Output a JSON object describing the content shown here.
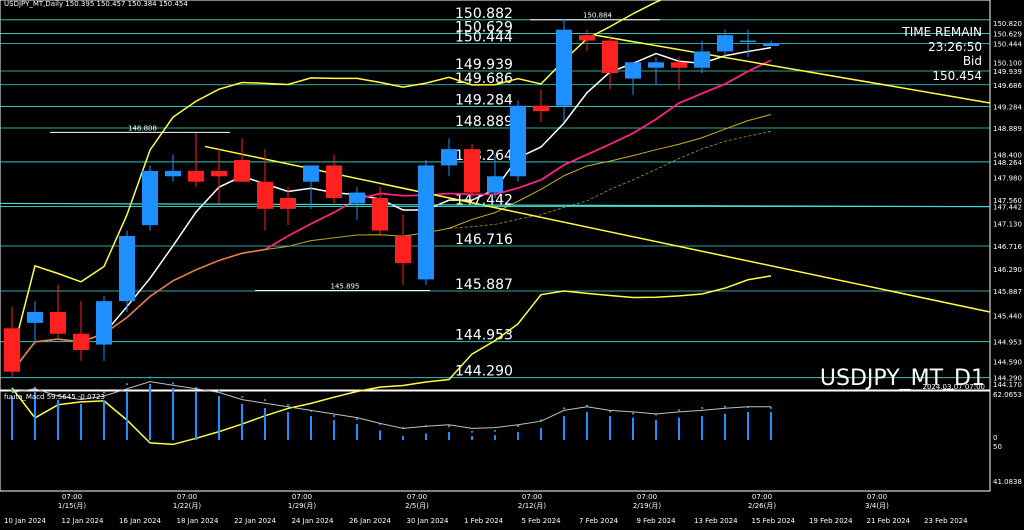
{
  "header": {
    "title": "USDJPY_MT,Daily  150.395 150.457 150.384 150.454",
    "watermark": "USDJPY_MT_D1",
    "watermark_date": "2024.03.07 07:00"
  },
  "info_panel": {
    "time_label": "TIME REMAIN",
    "time_value": "23:26:50",
    "bid_label": "Bid",
    "bid_value": "150.454"
  },
  "macd": {
    "label": "fuuta_Macd 59.5645  -0.0723",
    "axis": [
      "62.0653",
      "0",
      "50",
      "41.0838"
    ]
  },
  "chart_data": {
    "type": "candlestick",
    "price_axis": [
      "150.820",
      "150.629",
      "150.444",
      "150.100",
      "149.939",
      "149.686",
      "149.284",
      "148.889",
      "148.400",
      "148.264",
      "147.980",
      "147.560",
      "147.442",
      "147.130",
      "146.716",
      "146.290",
      "145.887",
      "145.440",
      "144.953",
      "144.590",
      "144.290",
      "144.170"
    ],
    "level_labels": [
      "150.882",
      "150.629",
      "150.444",
      "149.939",
      "149.686",
      "149.284",
      "148.889",
      "148.264",
      "147.442",
      "146.716",
      "145.887",
      "144.953",
      "144.290"
    ],
    "annotations": [
      "150.884",
      "148.808",
      "145.895"
    ],
    "date_axis_bottom": [
      "10 Jan 2024",
      "12 Jan 2024",
      "16 Jan 2024",
      "18 Jan 2024",
      "22 Jan 2024",
      "24 Jan 2024",
      "26 Jan 2024",
      "30 Jan 2024",
      "1 Feb 2024",
      "5 Feb 2024",
      "7 Feb 2024",
      "9 Feb 2024",
      "13 Feb 2024",
      "15 Feb 2024",
      "19 Feb 2024",
      "21 Feb 2024",
      "23 Feb 2024"
    ],
    "week_labels": [
      {
        "time": "07:00",
        "date": "1/15(月)"
      },
      {
        "time": "07:00",
        "date": "1/22(月)"
      },
      {
        "time": "07:00",
        "date": "1/29(月)"
      },
      {
        "time": "07:00",
        "date": "2/5(月)"
      },
      {
        "time": "07:00",
        "date": "2/12(月)"
      },
      {
        "time": "07:00",
        "date": "2/19(月)"
      },
      {
        "time": "07:00",
        "date": "2/26(月)"
      },
      {
        "time": "07:00",
        "date": "3/4(月)"
      }
    ],
    "ylim": [
      144.1,
      151.1
    ],
    "candles": [
      {
        "o": 145.2,
        "h": 145.6,
        "l": 144.3,
        "c": 144.4
      },
      {
        "o": 145.3,
        "h": 145.7,
        "l": 144.9,
        "c": 145.5
      },
      {
        "o": 145.5,
        "h": 146.0,
        "l": 145.0,
        "c": 145.1
      },
      {
        "o": 145.1,
        "h": 145.7,
        "l": 144.6,
        "c": 144.8
      },
      {
        "o": 144.9,
        "h": 145.8,
        "l": 144.6,
        "c": 145.7
      },
      {
        "o": 145.7,
        "h": 147.0,
        "l": 145.5,
        "c": 146.9
      },
      {
        "o": 147.1,
        "h": 148.2,
        "l": 147.0,
        "c": 148.1
      },
      {
        "o": 148.0,
        "h": 148.4,
        "l": 147.9,
        "c": 148.1
      },
      {
        "o": 148.1,
        "h": 148.8,
        "l": 147.8,
        "c": 147.9
      },
      {
        "o": 148.1,
        "h": 148.5,
        "l": 147.5,
        "c": 148.0
      },
      {
        "o": 148.3,
        "h": 148.7,
        "l": 147.9,
        "c": 147.9
      },
      {
        "o": 147.9,
        "h": 148.5,
        "l": 147.0,
        "c": 147.4
      },
      {
        "o": 147.6,
        "h": 147.8,
        "l": 147.1,
        "c": 147.4
      },
      {
        "o": 147.9,
        "h": 148.2,
        "l": 147.4,
        "c": 148.2
      },
      {
        "o": 148.2,
        "h": 148.4,
        "l": 147.5,
        "c": 147.6
      },
      {
        "o": 147.5,
        "h": 147.8,
        "l": 147.2,
        "c": 147.7
      },
      {
        "o": 147.6,
        "h": 147.8,
        "l": 146.9,
        "c": 147.0
      },
      {
        "o": 146.9,
        "h": 147.3,
        "l": 146.0,
        "c": 146.4
      },
      {
        "o": 146.1,
        "h": 148.3,
        "l": 146.0,
        "c": 148.2
      },
      {
        "o": 148.2,
        "h": 148.7,
        "l": 148.0,
        "c": 148.5
      },
      {
        "o": 148.5,
        "h": 148.6,
        "l": 147.6,
        "c": 147.7
      },
      {
        "o": 147.7,
        "h": 148.4,
        "l": 147.6,
        "c": 148.0
      },
      {
        "o": 148.0,
        "h": 149.4,
        "l": 147.9,
        "c": 149.3
      },
      {
        "o": 149.3,
        "h": 149.6,
        "l": 149.0,
        "c": 149.2
      },
      {
        "o": 149.3,
        "h": 150.9,
        "l": 149.0,
        "c": 150.7
      },
      {
        "o": 150.6,
        "h": 150.7,
        "l": 150.3,
        "c": 150.5
      },
      {
        "o": 150.5,
        "h": 150.6,
        "l": 149.6,
        "c": 149.9
      },
      {
        "o": 149.8,
        "h": 150.1,
        "l": 149.5,
        "c": 150.1
      },
      {
        "o": 150.0,
        "h": 150.2,
        "l": 149.7,
        "c": 150.1
      },
      {
        "o": 150.1,
        "h": 150.2,
        "l": 149.6,
        "c": 150.0
      },
      {
        "o": 150.0,
        "h": 150.5,
        "l": 149.9,
        "c": 150.3
      },
      {
        "o": 150.3,
        "h": 150.7,
        "l": 150.2,
        "c": 150.6
      },
      {
        "o": 150.5,
        "h": 150.7,
        "l": 150.2,
        "c": 150.5
      },
      {
        "o": 150.4,
        "h": 150.5,
        "l": 150.4,
        "c": 150.45
      }
    ],
    "macd_values": [
      0.55,
      0.6,
      0.5,
      0.45,
      0.5,
      0.6,
      0.7,
      0.65,
      0.6,
      0.55,
      0.45,
      0.4,
      0.35,
      0.3,
      0.25,
      0.2,
      0.12,
      0.05,
      0.08,
      0.1,
      0.05,
      0.06,
      0.1,
      0.15,
      0.3,
      0.35,
      0.3,
      0.28,
      0.25,
      0.28,
      0.3,
      0.33,
      0.35,
      0.35
    ],
    "grid": false,
    "legend": "none",
    "colors": {
      "up": "#1e90ff",
      "down": "#ff2020",
      "level": "#40e0d0",
      "yellow": "#ffff40",
      "white": "#ffffff",
      "magenta": "#ff2080"
    }
  }
}
